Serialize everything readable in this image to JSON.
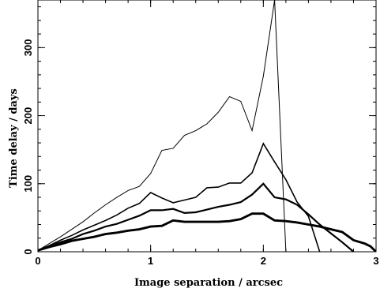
{
  "chart_data": {
    "type": "line",
    "title": "",
    "xlabel": "Image separation / arcsec",
    "ylabel": "Time delay / days",
    "xlim": [
      0,
      3
    ],
    "ylim": [
      0,
      370
    ],
    "x_ticks": [
      0,
      1,
      2,
      3
    ],
    "y_ticks": [
      0,
      100,
      200,
      300
    ],
    "x_minor_step": 0.2,
    "y_minor_step": 20,
    "grid": false,
    "legend": "none",
    "line_color": "#000000",
    "series": [
      {
        "line_weight": "thin",
        "x": [
          0,
          0.1,
          0.2,
          0.3,
          0.4,
          0.5,
          0.6,
          0.7,
          0.8,
          0.9,
          1.0,
          1.1,
          1.2,
          1.3,
          1.4,
          1.5,
          1.6,
          1.7,
          1.8,
          1.9,
          2.0,
          2.1,
          2.2
        ],
        "y": [
          2,
          12,
          22,
          33,
          44,
          57,
          69,
          80,
          90,
          96,
          115,
          149,
          152,
          171,
          178,
          188,
          205,
          228,
          221,
          178,
          258,
          370,
          0
        ]
      },
      {
        "line_weight": "medium",
        "x": [
          0,
          0.1,
          0.2,
          0.3,
          0.4,
          0.5,
          0.6,
          0.7,
          0.8,
          0.9,
          1.0,
          1.1,
          1.2,
          1.3,
          1.4,
          1.5,
          1.6,
          1.7,
          1.8,
          1.9,
          2.0,
          2.1,
          2.2,
          2.3,
          2.4,
          2.5
        ],
        "y": [
          2,
          9,
          17,
          24,
          32,
          39,
          46,
          54,
          64,
          71,
          87,
          79,
          72,
          76,
          80,
          94,
          95,
          101,
          101,
          116,
          159,
          132,
          106,
          73,
          52,
          0
        ]
      },
      {
        "line_weight": "thick",
        "x": [
          0,
          0.1,
          0.2,
          0.3,
          0.4,
          0.5,
          0.6,
          0.7,
          0.8,
          0.9,
          1.0,
          1.1,
          1.2,
          1.3,
          1.4,
          1.5,
          1.6,
          1.7,
          1.8,
          1.9,
          2.0,
          2.1,
          2.2,
          2.3,
          2.4,
          2.5,
          2.6,
          2.7,
          2.8
        ],
        "y": [
          2,
          8,
          14,
          19,
          26,
          31,
          37,
          41,
          47,
          53,
          61,
          61,
          63,
          57,
          58,
          62,
          66,
          69,
          73,
          84,
          100,
          80,
          77,
          69,
          55,
          40,
          27,
          14,
          0
        ]
      },
      {
        "line_weight": "thickest",
        "x": [
          0,
          0.1,
          0.2,
          0.3,
          0.4,
          0.5,
          0.6,
          0.7,
          0.8,
          0.9,
          1.0,
          1.1,
          1.2,
          1.3,
          1.4,
          1.5,
          1.6,
          1.7,
          1.8,
          1.9,
          2.0,
          2.1,
          2.2,
          2.3,
          2.4,
          2.5,
          2.6,
          2.7,
          2.8,
          2.9,
          2.95,
          3.0
        ],
        "y": [
          2,
          7,
          11,
          16,
          19,
          22,
          26,
          28,
          31,
          33,
          37,
          38,
          46,
          44,
          44,
          44,
          44,
          45,
          48,
          56,
          56,
          46,
          45,
          43,
          40,
          37,
          33,
          29,
          17,
          12,
          8,
          0
        ]
      }
    ]
  }
}
